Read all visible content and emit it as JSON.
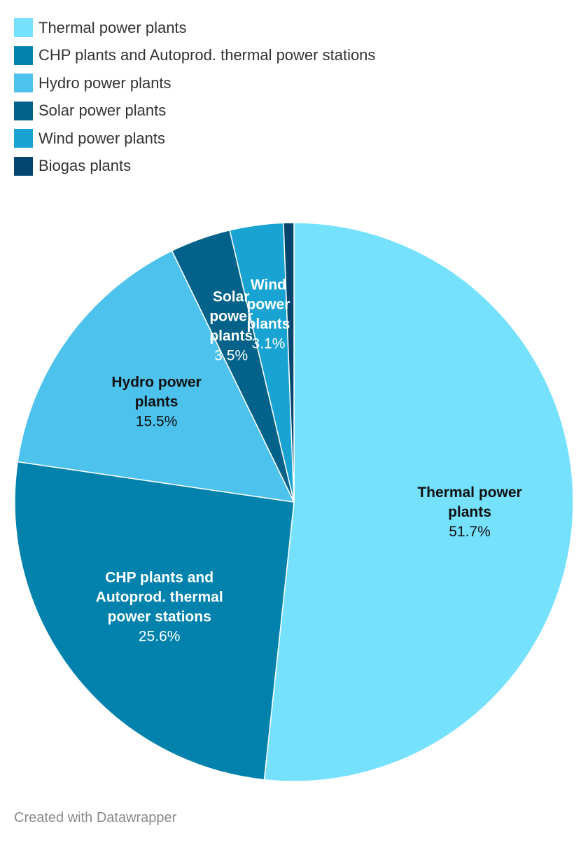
{
  "footer": {
    "credit": "Created with Datawrapper"
  },
  "chart_data": {
    "type": "pie",
    "title": "",
    "legend_position": "top-left",
    "slices": [
      {
        "name": "Thermal power plants",
        "value": 51.7,
        "value_label": "51.7%",
        "label_lines": [
          "Thermal power",
          "plants"
        ],
        "color": "#76e1fd",
        "text_color": "#111111"
      },
      {
        "name": "CHP plants and Autoprod. thermal power stations",
        "value": 25.6,
        "value_label": "25.6%",
        "label_lines": [
          "CHP plants and",
          "Autoprod. thermal",
          "power stations"
        ],
        "color": "#0082ad",
        "text_color": "#ffffff"
      },
      {
        "name": "Hydro power plants",
        "value": 15.5,
        "value_label": "15.5%",
        "label_lines": [
          "Hydro power",
          "plants"
        ],
        "color": "#4dc2ed",
        "text_color": "#111111"
      },
      {
        "name": "Solar power plants",
        "value": 3.5,
        "value_label": "3.5%",
        "label_lines": [
          "Solar",
          "power",
          "plants"
        ],
        "color": "#02628a",
        "text_color": "#ffffff"
      },
      {
        "name": "Wind power plants",
        "value": 3.1,
        "value_label": "3.1%",
        "label_lines": [
          "Wind",
          "power",
          "plants"
        ],
        "color": "#19a3d3",
        "text_color": "#ffffff"
      },
      {
        "name": "Biogas plants",
        "value": 0.6,
        "value_label": "",
        "label_lines": [],
        "color": "#024670",
        "text_color": "#ffffff"
      }
    ]
  }
}
